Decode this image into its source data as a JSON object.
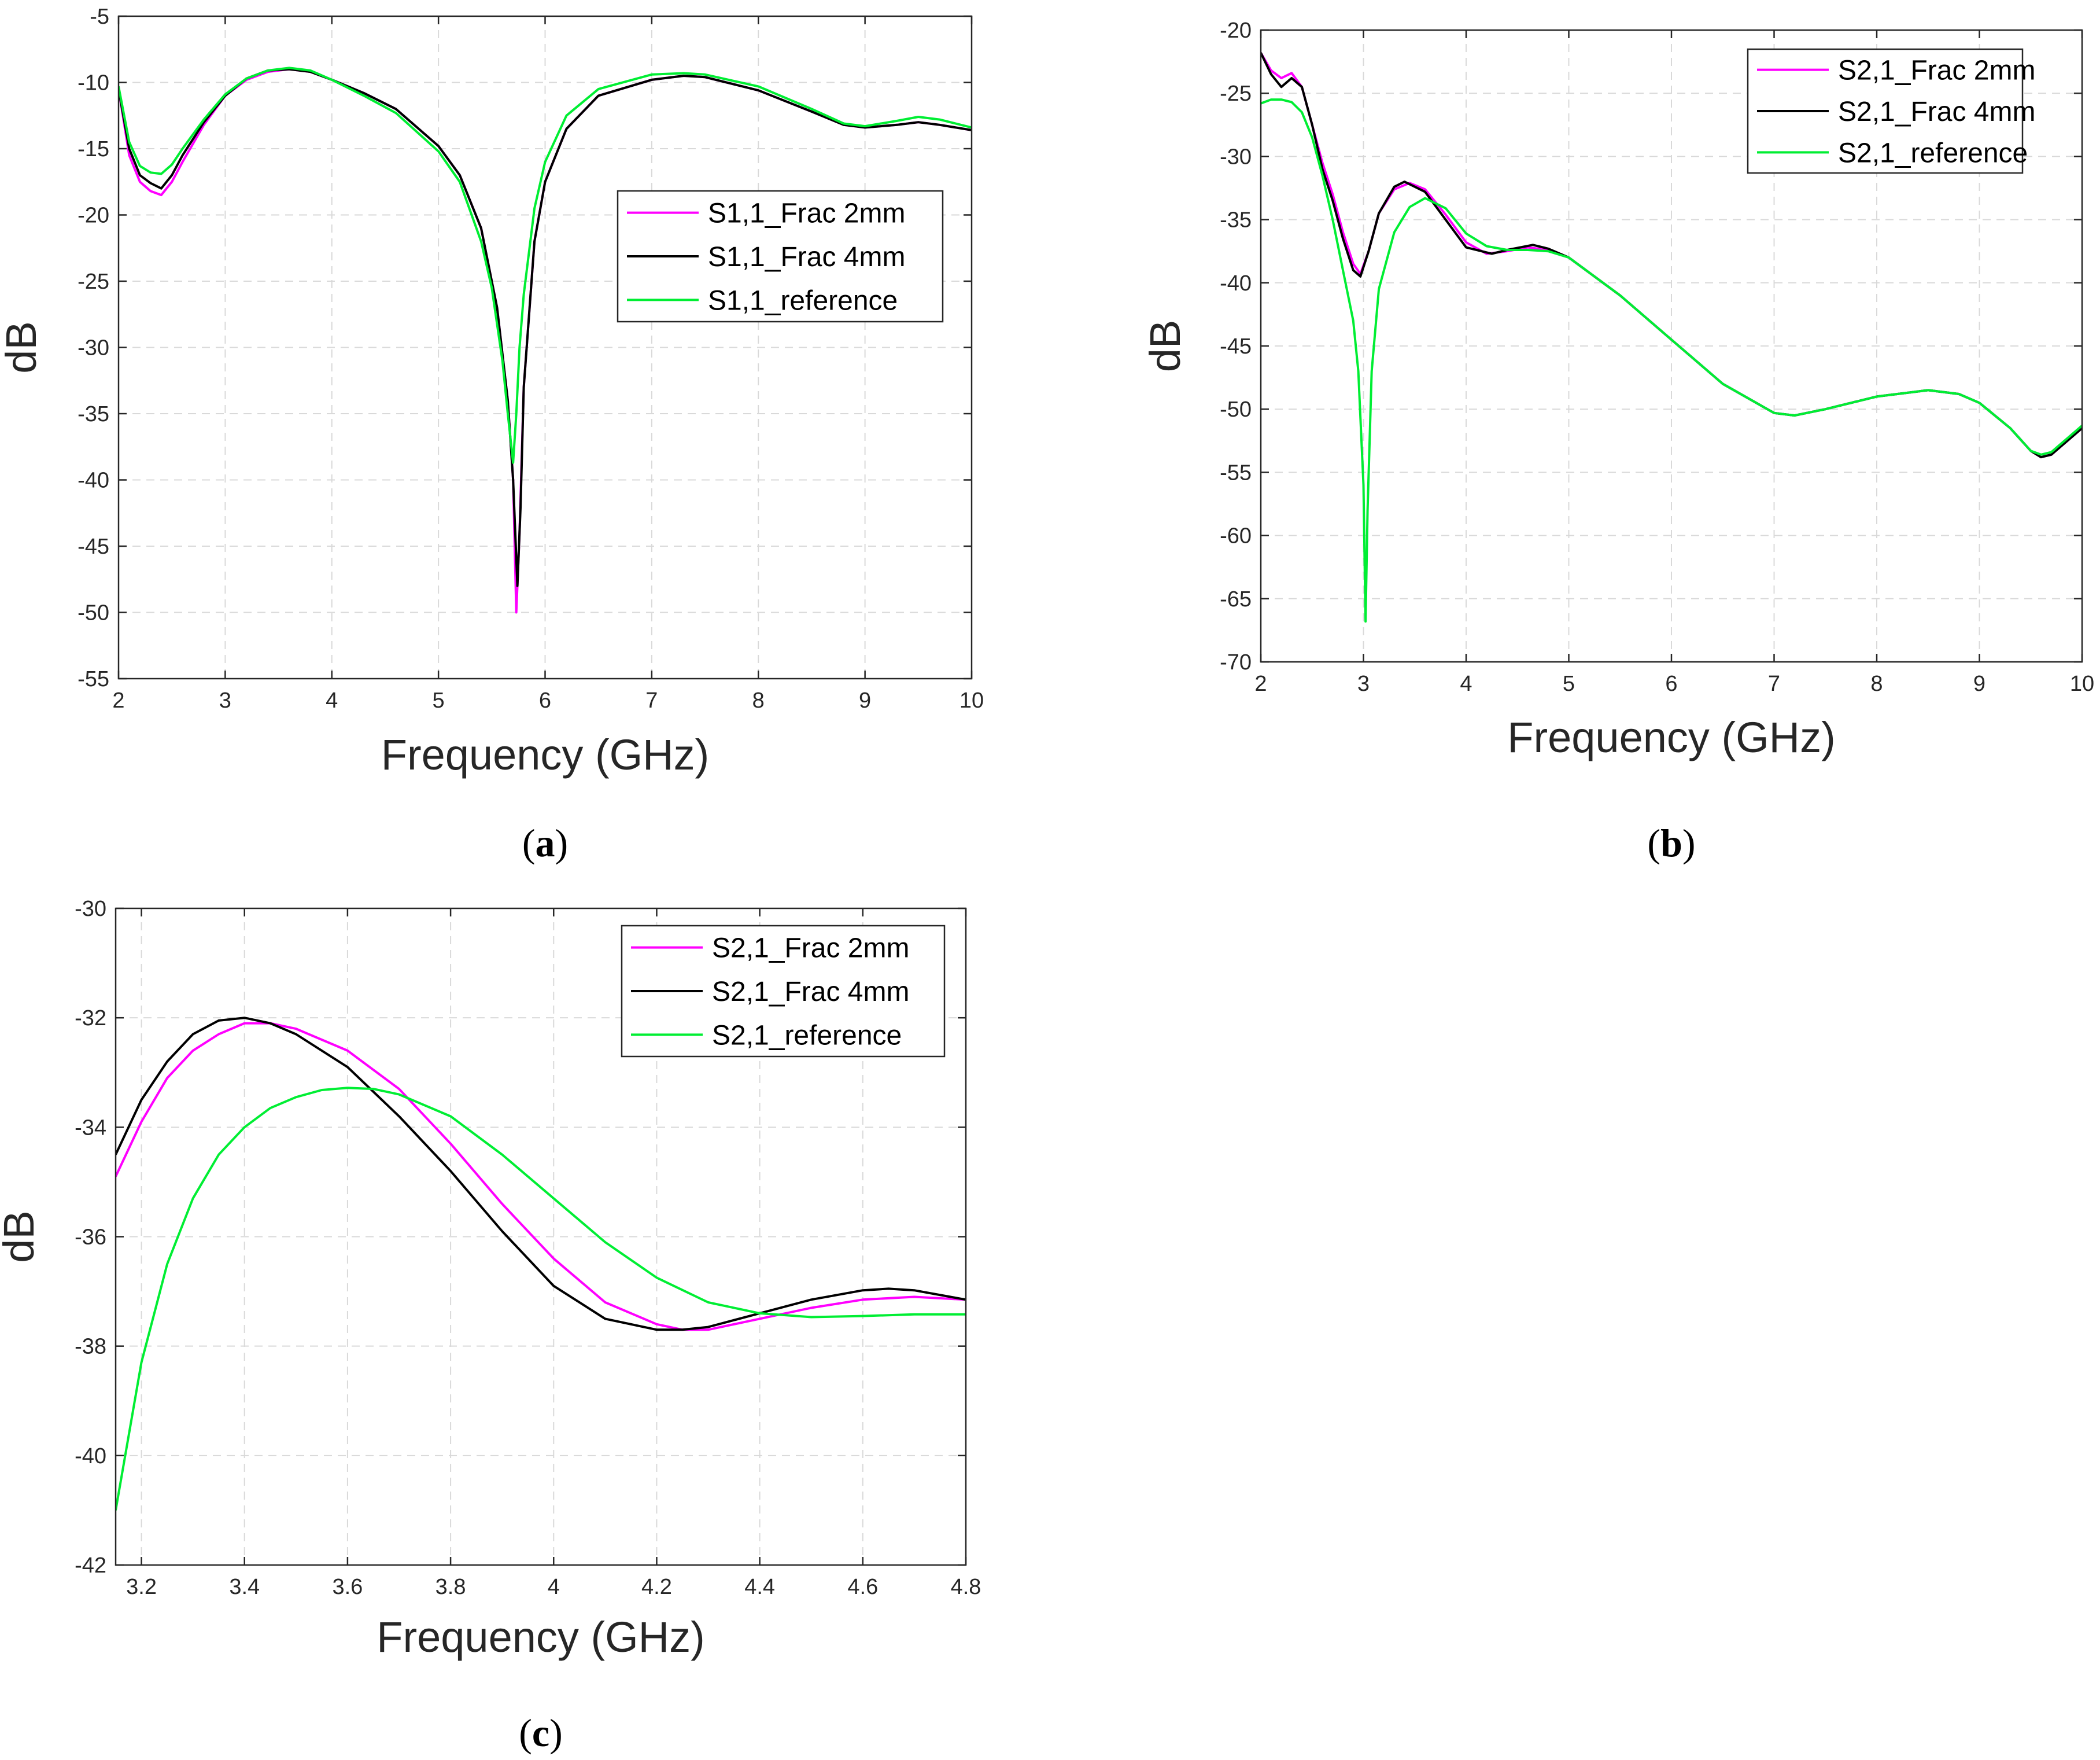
{
  "colors": {
    "frac2mm": "#ff00ff",
    "frac4mm": "#000000",
    "reference": "#00ee33",
    "grid": "#d9d9d9",
    "axis": "#262626"
  },
  "chart_data": [
    {
      "id": "a",
      "type": "line",
      "caption": "a",
      "xlabel": "Frequency (GHz)",
      "ylabel": "dB",
      "xlim": [
        2,
        10
      ],
      "ylim": [
        -55,
        -5
      ],
      "xticks": [
        2,
        3,
        4,
        5,
        6,
        7,
        8,
        9,
        10
      ],
      "yticks": [
        -55,
        -50,
        -45,
        -40,
        -35,
        -30,
        -25,
        -20,
        -15,
        -10,
        -5
      ],
      "grid": true,
      "legend_position": "center-right",
      "series": [
        {
          "name": "S1,1_Frac 2mm",
          "color": "#ff00ff",
          "x": [
            2,
            2.1,
            2.2,
            2.3,
            2.4,
            2.5,
            2.6,
            2.8,
            3.0,
            3.2,
            3.4,
            3.6,
            3.8,
            4.0,
            4.3,
            4.6,
            5.0,
            5.2,
            5.4,
            5.55,
            5.65,
            5.7,
            5.73,
            5.76,
            5.8,
            5.9,
            6.0,
            6.2,
            6.5,
            7.0,
            7.3,
            7.5,
            8.0,
            8.5,
            8.8,
            9.0,
            9.3,
            9.5,
            9.7,
            10
          ],
          "y": [
            -10.5,
            -15.5,
            -17.5,
            -18.2,
            -18.5,
            -17.5,
            -16,
            -13.2,
            -11,
            -9.8,
            -9.2,
            -9,
            -9.2,
            -9.8,
            -10.8,
            -12,
            -14.8,
            -17,
            -21,
            -27,
            -34,
            -40,
            -50,
            -44,
            -33,
            -22,
            -17.5,
            -13.5,
            -11,
            -9.8,
            -9.5,
            -9.6,
            -10.6,
            -12.2,
            -13.2,
            -13.4,
            -13.2,
            -13.0,
            -13.2,
            -13.6
          ]
        },
        {
          "name": "S1,1_Frac 4mm",
          "color": "#000000",
          "x": [
            2,
            2.1,
            2.2,
            2.3,
            2.4,
            2.5,
            2.6,
            2.8,
            3.0,
            3.2,
            3.4,
            3.6,
            3.8,
            4.0,
            4.3,
            4.6,
            5.0,
            5.2,
            5.4,
            5.55,
            5.65,
            5.7,
            5.74,
            5.77,
            5.8,
            5.9,
            6.0,
            6.2,
            6.5,
            7.0,
            7.3,
            7.5,
            8.0,
            8.5,
            8.8,
            9.0,
            9.3,
            9.5,
            9.7,
            10
          ],
          "y": [
            -10.5,
            -15,
            -17,
            -17.6,
            -18,
            -17,
            -15.5,
            -13,
            -11,
            -9.7,
            -9.1,
            -9,
            -9.2,
            -9.8,
            -10.8,
            -12,
            -14.8,
            -17,
            -21,
            -27,
            -34,
            -40,
            -48,
            -42,
            -33,
            -22,
            -17.5,
            -13.5,
            -11,
            -9.8,
            -9.5,
            -9.6,
            -10.6,
            -12.2,
            -13.2,
            -13.4,
            -13.2,
            -13.0,
            -13.2,
            -13.6
          ]
        },
        {
          "name": "S1,1_reference",
          "color": "#00ee33",
          "x": [
            2,
            2.1,
            2.2,
            2.3,
            2.4,
            2.5,
            2.6,
            2.8,
            3.0,
            3.2,
            3.4,
            3.6,
            3.8,
            4.0,
            4.3,
            4.6,
            5.0,
            5.2,
            5.4,
            5.5,
            5.6,
            5.65,
            5.7,
            5.73,
            5.76,
            5.8,
            5.9,
            6.0,
            6.2,
            6.5,
            7.0,
            7.3,
            7.5,
            8.0,
            8.5,
            8.8,
            9.0,
            9.3,
            9.5,
            9.7,
            10
          ],
          "y": [
            -10.3,
            -14.5,
            -16.3,
            -16.8,
            -16.9,
            -16.2,
            -15,
            -12.8,
            -10.9,
            -9.7,
            -9.1,
            -8.9,
            -9.1,
            -9.8,
            -11,
            -12.3,
            -15.2,
            -17.5,
            -22,
            -25.5,
            -31,
            -35,
            -38.7,
            -35,
            -30,
            -26,
            -19.5,
            -16,
            -12.5,
            -10.5,
            -9.4,
            -9.3,
            -9.4,
            -10.3,
            -12,
            -13.1,
            -13.3,
            -12.9,
            -12.6,
            -12.8,
            -13.4
          ]
        }
      ]
    },
    {
      "id": "b",
      "type": "line",
      "caption": "b",
      "xlabel": "Frequency (GHz)",
      "ylabel": "dB",
      "xlim": [
        2,
        10
      ],
      "ylim": [
        -70,
        -20
      ],
      "xticks": [
        2,
        3,
        4,
        5,
        6,
        7,
        8,
        9,
        10
      ],
      "yticks": [
        -70,
        -65,
        -60,
        -55,
        -50,
        -45,
        -40,
        -35,
        -30,
        -25,
        -20
      ],
      "grid": true,
      "legend_position": "top-right",
      "series": [
        {
          "name": "S2,1_Frac 2mm",
          "color": "#ff00ff",
          "x": [
            2,
            2.1,
            2.2,
            2.3,
            2.4,
            2.5,
            2.6,
            2.7,
            2.8,
            2.9,
            2.97,
            3.05,
            3.15,
            3.3,
            3.45,
            3.6,
            3.8,
            4.0,
            4.2,
            4.4,
            4.6,
            4.8,
            5.0,
            5.5,
            6.0,
            6.5,
            7.0,
            7.2,
            7.5,
            8.0,
            8.5,
            8.8,
            9.0,
            9.3,
            9.5,
            9.6,
            9.7,
            10
          ],
          "y": [
            -21.8,
            -23.2,
            -23.8,
            -23.4,
            -24.5,
            -27.5,
            -30.5,
            -33,
            -36,
            -38.5,
            -39.3,
            -37.5,
            -34.5,
            -32.6,
            -32.1,
            -32.6,
            -34.6,
            -36.8,
            -37.7,
            -37.5,
            -37.2,
            -37.4,
            -38,
            -41,
            -44.5,
            -48,
            -50.3,
            -50.5,
            -50,
            -49,
            -48.5,
            -48.8,
            -49.5,
            -51.5,
            -53.3,
            -53.8,
            -53.6,
            -51.5
          ]
        },
        {
          "name": "S2,1_Frac 4mm",
          "color": "#000000",
          "x": [
            2,
            2.1,
            2.2,
            2.3,
            2.4,
            2.5,
            2.6,
            2.7,
            2.8,
            2.9,
            2.97,
            3.05,
            3.15,
            3.3,
            3.4,
            3.6,
            3.8,
            4.0,
            4.25,
            4.4,
            4.65,
            4.8,
            5.0,
            5.5,
            6.0,
            6.5,
            7.0,
            7.2,
            7.5,
            8.0,
            8.5,
            8.8,
            9.0,
            9.3,
            9.5,
            9.6,
            9.7,
            10
          ],
          "y": [
            -21.8,
            -23.5,
            -24.5,
            -23.8,
            -24.5,
            -27.5,
            -31,
            -33.5,
            -36.5,
            -39,
            -39.5,
            -37.5,
            -34.5,
            -32.4,
            -32,
            -32.8,
            -35,
            -37.2,
            -37.7,
            -37.4,
            -37,
            -37.3,
            -38,
            -41,
            -44.5,
            -48,
            -50.3,
            -50.5,
            -50,
            -49,
            -48.5,
            -48.8,
            -49.5,
            -51.5,
            -53.3,
            -53.8,
            -53.6,
            -51.5
          ]
        },
        {
          "name": "S2,1_reference",
          "color": "#00ee33",
          "x": [
            2,
            2.1,
            2.2,
            2.3,
            2.4,
            2.5,
            2.6,
            2.7,
            2.8,
            2.9,
            2.95,
            3.0,
            3.02,
            3.04,
            3.08,
            3.15,
            3.3,
            3.45,
            3.6,
            3.8,
            4.0,
            4.2,
            4.4,
            4.6,
            4.8,
            5.0,
            5.5,
            6.0,
            6.5,
            7.0,
            7.2,
            7.5,
            8.0,
            8.5,
            8.8,
            9.0,
            9.3,
            9.5,
            9.6,
            9.7,
            10
          ],
          "y": [
            -25.8,
            -25.5,
            -25.5,
            -25.7,
            -26.5,
            -28.5,
            -31.5,
            -35,
            -39,
            -43,
            -47,
            -56,
            -66.8,
            -58,
            -47,
            -40.5,
            -36,
            -34,
            -33.3,
            -34.1,
            -36.1,
            -37.1,
            -37.4,
            -37.4,
            -37.5,
            -38,
            -41,
            -44.5,
            -48,
            -50.3,
            -50.5,
            -50,
            -49,
            -48.5,
            -48.8,
            -49.5,
            -51.5,
            -53.3,
            -53.6,
            -53.4,
            -51.3
          ]
        }
      ]
    },
    {
      "id": "c",
      "type": "line",
      "caption": "c",
      "xlabel": "Frequency (GHz)",
      "ylabel": "dB",
      "xlim": [
        3.15,
        4.8
      ],
      "ylim": [
        -42,
        -30
      ],
      "xticks": [
        3.2,
        3.4,
        3.6,
        3.8,
        4,
        4.2,
        4.4,
        4.6,
        4.8
      ],
      "yticks": [
        -42,
        -40,
        -38,
        -36,
        -34,
        -32,
        -30
      ],
      "grid": true,
      "legend_position": "top-right",
      "series": [
        {
          "name": "S2,1_Frac 2mm",
          "color": "#ff00ff",
          "x": [
            3.15,
            3.2,
            3.25,
            3.3,
            3.35,
            3.4,
            3.45,
            3.5,
            3.6,
            3.7,
            3.8,
            3.9,
            4.0,
            4.1,
            4.2,
            4.25,
            4.3,
            4.4,
            4.5,
            4.6,
            4.7,
            4.8
          ],
          "y": [
            -34.9,
            -33.9,
            -33.1,
            -32.6,
            -32.3,
            -32.1,
            -32.1,
            -32.2,
            -32.6,
            -33.3,
            -34.3,
            -35.4,
            -36.4,
            -37.2,
            -37.6,
            -37.7,
            -37.7,
            -37.5,
            -37.3,
            -37.15,
            -37.1,
            -37.15
          ]
        },
        {
          "name": "S2,1_Frac 4mm",
          "color": "#000000",
          "x": [
            3.15,
            3.2,
            3.25,
            3.3,
            3.35,
            3.4,
            3.45,
            3.5,
            3.6,
            3.7,
            3.8,
            3.9,
            4.0,
            4.1,
            4.2,
            4.25,
            4.3,
            4.4,
            4.5,
            4.6,
            4.65,
            4.7,
            4.8
          ],
          "y": [
            -34.5,
            -33.5,
            -32.8,
            -32.3,
            -32.05,
            -32.0,
            -32.1,
            -32.3,
            -32.9,
            -33.8,
            -34.8,
            -35.9,
            -36.9,
            -37.5,
            -37.7,
            -37.7,
            -37.65,
            -37.4,
            -37.15,
            -36.98,
            -36.95,
            -36.98,
            -37.15
          ]
        },
        {
          "name": "S2,1_reference",
          "color": "#00ee33",
          "x": [
            3.15,
            3.2,
            3.25,
            3.3,
            3.35,
            3.4,
            3.45,
            3.5,
            3.55,
            3.6,
            3.65,
            3.7,
            3.8,
            3.9,
            4.0,
            4.1,
            4.2,
            4.3,
            4.4,
            4.5,
            4.6,
            4.7,
            4.8
          ],
          "y": [
            -41.0,
            -38.3,
            -36.5,
            -35.3,
            -34.5,
            -34.0,
            -33.65,
            -33.45,
            -33.32,
            -33.28,
            -33.3,
            -33.4,
            -33.8,
            -34.5,
            -35.3,
            -36.1,
            -36.75,
            -37.2,
            -37.4,
            -37.47,
            -37.45,
            -37.42,
            -37.42
          ]
        }
      ]
    }
  ]
}
